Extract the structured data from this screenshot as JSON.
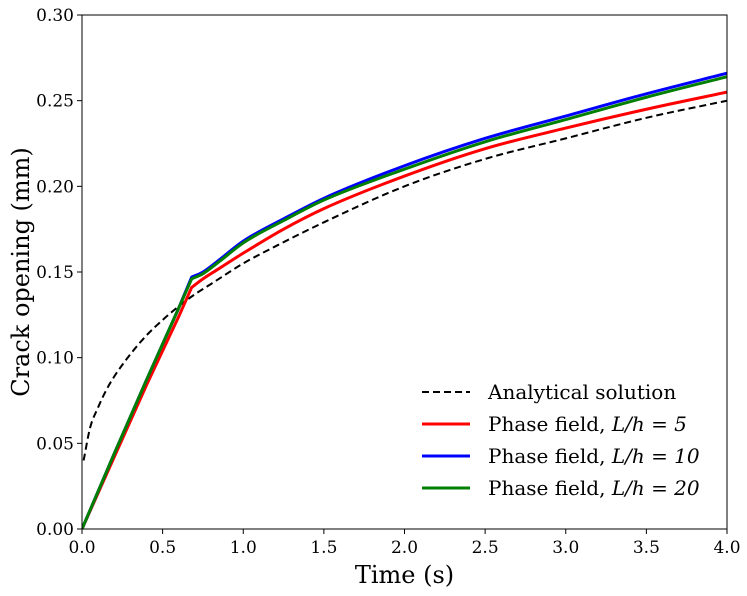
{
  "chart_data": {
    "type": "line",
    "title": "",
    "xlabel": "Time (s)",
    "ylabel": "Crack opening (mm)",
    "xlim": [
      0.0,
      4.0
    ],
    "ylim": [
      0.0,
      0.3
    ],
    "xticks": [
      0.0,
      0.5,
      1.0,
      1.5,
      2.0,
      2.5,
      3.0,
      3.5,
      4.0
    ],
    "xtick_labels": [
      "0.0",
      "0.5",
      "1.0",
      "1.5",
      "2.0",
      "2.5",
      "3.0",
      "3.5",
      "4.0"
    ],
    "yticks": [
      0.0,
      0.05,
      0.1,
      0.15,
      0.2,
      0.25,
      0.3
    ],
    "ytick_labels": [
      "0.00",
      "0.05",
      "0.10",
      "0.15",
      "0.20",
      "0.25",
      "0.30"
    ],
    "grid": false,
    "legend_position": "lower-right",
    "series": [
      {
        "name": "Analytical solution",
        "label_text": "Analytical solution",
        "color": "#000000",
        "style": "dashed",
        "x": [
          0.01,
          0.05,
          0.1,
          0.15,
          0.2,
          0.3,
          0.4,
          0.5,
          0.6,
          0.7,
          0.8,
          1.0,
          1.2,
          1.5,
          2.0,
          2.5,
          3.0,
          3.5,
          4.0
        ],
        "y": [
          0.04,
          0.059,
          0.071,
          0.081,
          0.089,
          0.102,
          0.113,
          0.122,
          0.13,
          0.137,
          0.143,
          0.155,
          0.165,
          0.179,
          0.2,
          0.216,
          0.228,
          0.24,
          0.25
        ]
      },
      {
        "name": "Phase field, L/h = 5",
        "label_text": "Phase field, ",
        "label_math": "L/h = 5",
        "color": "#ff0000",
        "style": "solid",
        "x": [
          0.0,
          0.2,
          0.4,
          0.6,
          0.68,
          0.75,
          0.85,
          1.0,
          1.25,
          1.5,
          2.0,
          2.5,
          3.0,
          3.5,
          4.0
        ],
        "y": [
          0.0,
          0.042,
          0.084,
          0.124,
          0.141,
          0.146,
          0.152,
          0.161,
          0.175,
          0.187,
          0.206,
          0.222,
          0.234,
          0.245,
          0.255
        ]
      },
      {
        "name": "Phase field, L/h = 10",
        "label_text": "Phase field, ",
        "label_math": "L/h = 10",
        "color": "#0000ff",
        "style": "solid",
        "x": [
          0.0,
          0.2,
          0.4,
          0.6,
          0.68,
          0.75,
          0.85,
          1.0,
          1.25,
          1.5,
          2.0,
          2.5,
          3.0,
          3.5,
          4.0
        ],
        "y": [
          0.0,
          0.044,
          0.087,
          0.129,
          0.147,
          0.15,
          0.157,
          0.168,
          0.181,
          0.193,
          0.212,
          0.228,
          0.241,
          0.254,
          0.266
        ]
      },
      {
        "name": "Phase field, L/h = 20",
        "label_text": "Phase field, ",
        "label_math": "L/h = 20",
        "color": "#008000",
        "style": "solid",
        "x": [
          0.0,
          0.2,
          0.4,
          0.6,
          0.68,
          0.75,
          0.85,
          1.0,
          1.25,
          1.5,
          2.0,
          2.5,
          3.0,
          3.5,
          4.0
        ],
        "y": [
          0.0,
          0.044,
          0.087,
          0.129,
          0.146,
          0.149,
          0.156,
          0.167,
          0.18,
          0.192,
          0.21,
          0.226,
          0.239,
          0.252,
          0.264
        ]
      }
    ]
  }
}
